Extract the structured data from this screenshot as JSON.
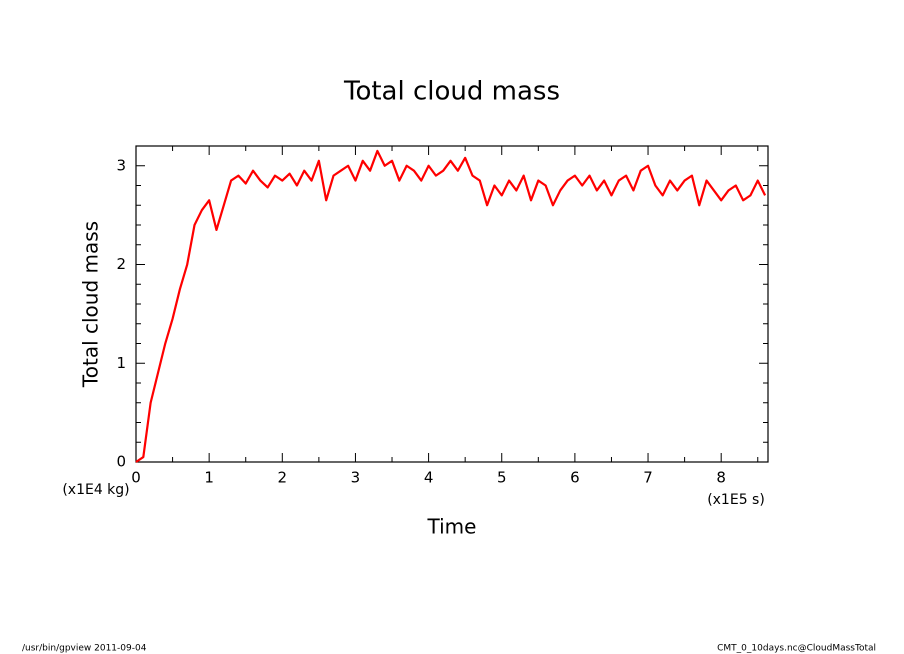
{
  "chart_data": {
    "type": "line",
    "title": "Total cloud mass",
    "y_label": "Total cloud mass",
    "x_label": "Time",
    "y_unit": "(x1E4 kg)",
    "x_unit": "(x1E5 s)",
    "footer_left": "/usr/bin/gpview  2011-09-04",
    "footer_right": "CMT_0_10days.nc@CloudMassTotal",
    "xlim": [
      0,
      8.64
    ],
    "ylim": [
      0,
      3.2
    ],
    "xticks": [
      0,
      1,
      2,
      3,
      4,
      5,
      6,
      7,
      8
    ],
    "yticks": [
      0,
      1,
      2,
      3
    ],
    "xminorticks": [
      0.5,
      1.5,
      2.5,
      3.5,
      4.5,
      5.5,
      6.5,
      7.5,
      8.5
    ],
    "yminorticks": [
      0.2,
      0.4,
      0.6,
      0.8,
      1.2,
      1.4,
      1.6,
      1.8,
      2.2,
      2.4,
      2.6,
      2.8,
      3.2
    ],
    "x": [
      0,
      0.1,
      0.2,
      0.3,
      0.4,
      0.5,
      0.6,
      0.7,
      0.8,
      0.9,
      1,
      1.1,
      1.2,
      1.3,
      1.4,
      1.5,
      1.6,
      1.7,
      1.8,
      1.9,
      2,
      2.1,
      2.2,
      2.3,
      2.4,
      2.5,
      2.6,
      2.7,
      2.8,
      2.9,
      3,
      3.1,
      3.2,
      3.3,
      3.4,
      3.5,
      3.6,
      3.7,
      3.8,
      3.9,
      4,
      4.1,
      4.2,
      4.3,
      4.4,
      4.5,
      4.6,
      4.7,
      4.8,
      4.9,
      5,
      5.1,
      5.2,
      5.3,
      5.4,
      5.5,
      5.6,
      5.7,
      5.8,
      5.9,
      6,
      6.1,
      6.2,
      6.3,
      6.4,
      6.5,
      6.6,
      6.7,
      6.8,
      6.9,
      7,
      7.1,
      7.2,
      7.3,
      7.4,
      7.5,
      7.6,
      7.7,
      7.8,
      7.9,
      8,
      8.1,
      8.2,
      8.3,
      8.4,
      8.5,
      8.6
    ],
    "series": [
      {
        "name": "CloudMassTotal",
        "color": "#ff0000",
        "values": [
          0,
          0.05,
          0.6,
          0.9,
          1.2,
          1.45,
          1.75,
          2.0,
          2.4,
          2.55,
          2.65,
          2.35,
          2.6,
          2.85,
          2.9,
          2.82,
          2.95,
          2.85,
          2.78,
          2.9,
          2.85,
          2.92,
          2.8,
          2.95,
          2.85,
          3.05,
          2.65,
          2.9,
          2.95,
          3.0,
          2.85,
          3.05,
          2.95,
          3.15,
          3.0,
          3.05,
          2.85,
          3.0,
          2.95,
          2.85,
          3.0,
          2.9,
          2.95,
          3.05,
          2.95,
          3.08,
          2.9,
          2.85,
          2.6,
          2.8,
          2.7,
          2.85,
          2.75,
          2.9,
          2.65,
          2.85,
          2.8,
          2.6,
          2.75,
          2.85,
          2.9,
          2.8,
          2.9,
          2.75,
          2.85,
          2.7,
          2.85,
          2.9,
          2.75,
          2.95,
          3.0,
          2.8,
          2.7,
          2.85,
          2.75,
          2.85,
          2.9,
          2.6,
          2.85,
          2.75,
          2.65,
          2.75,
          2.8,
          2.65,
          2.7,
          2.85,
          2.7
        ]
      }
    ]
  }
}
